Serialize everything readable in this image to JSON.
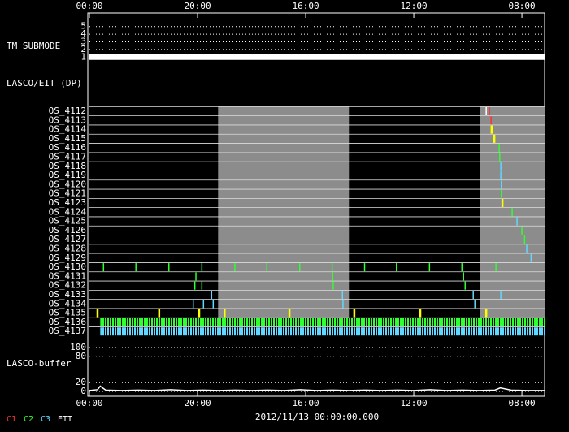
{
  "chart_data": {
    "type": "timeline",
    "date": "2012/11/13 00:00:00.000",
    "xlim": [
      0,
      84.2
    ],
    "xticks": [
      {
        "value": 0,
        "label": "00:00"
      },
      {
        "value": 20,
        "label": "20:00"
      },
      {
        "value": 40,
        "label": "16:00"
      },
      {
        "value": 60,
        "label": "12:00"
      },
      {
        "value": 80,
        "label": "08:00"
      }
    ],
    "legend": [
      {
        "name": "C1",
        "color": "#ff3030"
      },
      {
        "name": "C2",
        "color": "#30ff30"
      },
      {
        "name": "C3",
        "color": "#60d8ff"
      },
      {
        "name": "EIT",
        "color": "#ffffff"
      }
    ],
    "submode": {
      "label": "TM SUBMODE",
      "ylim": [
        0.5,
        5.5
      ],
      "yticks": [
        1,
        2,
        3,
        4,
        5
      ],
      "x": [
        0,
        84.2
      ],
      "values": [
        1,
        1
      ]
    },
    "dp": {
      "label": "LASCO/EIT (DP)",
      "shaded": [
        [
          23.8,
          48
        ],
        [
          72.2,
          84.2
        ]
      ],
      "rows": [
        {
          "label": "OS_4112",
          "marks": [
            {
              "x": 73.4,
              "color": "#ffffff"
            },
            {
              "x": 74,
              "color": "#ff3030"
            }
          ]
        },
        {
          "label": "OS_4113",
          "marks": [
            {
              "x": 74.3,
              "color": "#ff3030"
            }
          ]
        },
        {
          "label": "OS_4114",
          "marks": [
            {
              "x": 74.4,
              "color": "#ffff00"
            }
          ]
        },
        {
          "label": "OS_4115",
          "marks": [
            {
              "x": 74.9,
              "color": "#ffff00"
            }
          ]
        },
        {
          "label": "OS_4116",
          "marks": [
            {
              "x": 75.8,
              "color": "#30ff30"
            }
          ]
        },
        {
          "label": "OS_4117",
          "marks": [
            {
              "x": 75.9,
              "color": "#30ff30"
            }
          ]
        },
        {
          "label": "OS_4118",
          "marks": [
            {
              "x": 76.1,
              "color": "#60d8ff"
            }
          ]
        },
        {
          "label": "OS_4119",
          "marks": [
            {
              "x": 76.1,
              "color": "#60d8ff"
            }
          ]
        },
        {
          "label": "OS_4120",
          "marks": [
            {
              "x": 76.2,
              "color": "#60d8ff"
            }
          ]
        },
        {
          "label": "OS_4121",
          "marks": [
            {
              "x": 76.2,
              "color": "#30ff30"
            }
          ]
        },
        {
          "label": "OS_4123",
          "marks": [
            {
              "x": 76.4,
              "color": "#ffff00"
            }
          ]
        },
        {
          "label": "OS_4124",
          "marks": [
            {
              "x": 78.2,
              "color": "#30ff30"
            }
          ]
        },
        {
          "label": "OS_4125",
          "marks": [
            {
              "x": 79.1,
              "color": "#60d8ff"
            }
          ]
        },
        {
          "label": "OS_4126",
          "marks": [
            {
              "x": 80,
              "color": "#30ff30"
            }
          ]
        },
        {
          "label": "OS_4127",
          "marks": [
            {
              "x": 80.5,
              "color": "#30ff30"
            }
          ]
        },
        {
          "label": "OS_4128",
          "marks": [
            {
              "x": 80.9,
              "color": "#60d8ff"
            }
          ]
        },
        {
          "label": "OS_4129",
          "marks": [
            {
              "x": 81.7,
              "color": "#60d8ff"
            }
          ]
        },
        {
          "label": "OS_4130",
          "marks": [
            {
              "x": 2.6,
              "color": "#30ff30"
            },
            {
              "x": 8.6,
              "color": "#30ff30"
            },
            {
              "x": 14.7,
              "color": "#30ff30"
            },
            {
              "x": 20.8,
              "color": "#30ff30"
            },
            {
              "x": 26.9,
              "color": "#30ff30"
            },
            {
              "x": 32.8,
              "color": "#30ff30"
            },
            {
              "x": 38.9,
              "color": "#30ff30"
            },
            {
              "x": 44.9,
              "color": "#30ff30"
            },
            {
              "x": 50.9,
              "color": "#30ff30"
            },
            {
              "x": 56.8,
              "color": "#30ff30"
            },
            {
              "x": 62.9,
              "color": "#30ff30"
            },
            {
              "x": 68.9,
              "color": "#30ff30"
            },
            {
              "x": 75.2,
              "color": "#30ff30"
            }
          ]
        },
        {
          "label": "OS_4131",
          "marks": [
            {
              "x": 19.7,
              "color": "#30ff30"
            },
            {
              "x": 45,
              "color": "#30ff30"
            },
            {
              "x": 69.2,
              "color": "#30ff30"
            }
          ]
        },
        {
          "label": "OS_4132",
          "marks": [
            {
              "x": 19.5,
              "color": "#30ff30"
            },
            {
              "x": 20.8,
              "color": "#30ff30"
            },
            {
              "x": 45.1,
              "color": "#30ff30"
            },
            {
              "x": 69.5,
              "color": "#30ff30"
            }
          ]
        },
        {
          "label": "OS_4133",
          "marks": [
            {
              "x": 22.6,
              "color": "#60d8ff"
            },
            {
              "x": 46.8,
              "color": "#60d8ff"
            },
            {
              "x": 71,
              "color": "#60d8ff"
            },
            {
              "x": 76.1,
              "color": "#60d8ff"
            }
          ]
        },
        {
          "label": "OS_4134",
          "marks": [
            {
              "x": 19.2,
              "color": "#60d8ff"
            },
            {
              "x": 21.1,
              "color": "#60d8ff"
            },
            {
              "x": 22.9,
              "color": "#60d8ff"
            },
            {
              "x": 46.9,
              "color": "#60d8ff"
            },
            {
              "x": 71.3,
              "color": "#60d8ff"
            }
          ]
        },
        {
          "label": "OS_4135",
          "marks": [
            {
              "x": 1.5,
              "color": "#ffff00"
            },
            {
              "x": 12.9,
              "color": "#ffff00"
            },
            {
              "x": 20.3,
              "color": "#ffff00"
            },
            {
              "x": 25,
              "color": "#ffff00"
            },
            {
              "x": 37,
              "color": "#ffff00"
            },
            {
              "x": 49,
              "color": "#ffff00"
            },
            {
              "x": 61.2,
              "color": "#ffff00"
            },
            {
              "x": 73.4,
              "color": "#ffff00"
            }
          ]
        },
        {
          "label": "OS_4136",
          "spans": [
            {
              "from": 2,
              "to": 84.2,
              "color": "#30ff30"
            }
          ]
        },
        {
          "label": "OS_4137",
          "spans": [
            {
              "from": 2,
              "to": 84.2,
              "color": "#60d8ff"
            }
          ]
        }
      ]
    },
    "buffer": {
      "label": "LASCO-buffer",
      "ylim": [
        0,
        100
      ],
      "yticks": [
        0,
        20,
        80,
        100
      ],
      "x": [
        0,
        1.5,
        2,
        3,
        6,
        9,
        12,
        15,
        18,
        21,
        24,
        27,
        30,
        33,
        36,
        39,
        42,
        45,
        48,
        51,
        54,
        57,
        60,
        63,
        66,
        69,
        72,
        75,
        76,
        78,
        81,
        84.2
      ],
      "values": [
        2,
        4,
        12,
        3,
        2,
        3,
        2,
        4,
        2,
        3,
        2,
        3,
        2,
        3,
        2,
        4,
        2,
        3,
        2,
        3,
        2,
        3,
        2,
        4,
        2,
        3,
        2,
        3,
        8,
        3,
        2,
        2
      ]
    }
  }
}
